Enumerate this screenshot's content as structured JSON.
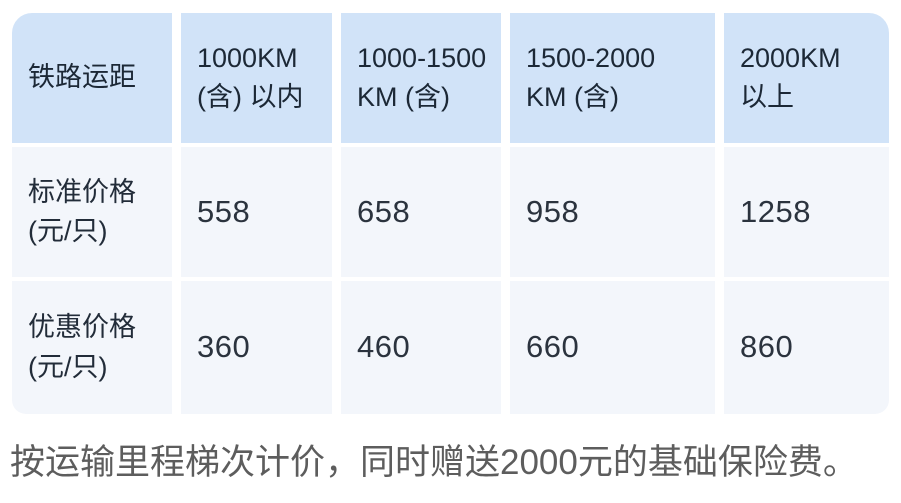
{
  "table": {
    "columns": [
      {
        "lines": [
          "铁路运距"
        ]
      },
      {
        "lines": [
          "1000KM",
          "(含) 以内"
        ]
      },
      {
        "lines": [
          "1000-1500",
          "KM (含)"
        ]
      },
      {
        "lines": [
          "1500-2000",
          "KM (含)"
        ]
      },
      {
        "lines": [
          "2000KM",
          "以上"
        ]
      }
    ],
    "rows": [
      {
        "label": [
          "标准价格",
          "(元/只)"
        ],
        "values": [
          "558",
          "658",
          "958",
          "1258"
        ]
      },
      {
        "label": [
          "优惠价格",
          "(元/只)"
        ],
        "values": [
          "360",
          "460",
          "660",
          "860"
        ]
      }
    ]
  },
  "note": "按运输里程梯次计价，同时赠送2000元的基础保险费。",
  "colors": {
    "header_bg": "#d1e3f8",
    "row_bg": "#f3f6fb",
    "header_text": "#1c2836",
    "number_text": "#2b333e",
    "note_text": "#5d5d5d",
    "page_bg": "#ffffff"
  }
}
